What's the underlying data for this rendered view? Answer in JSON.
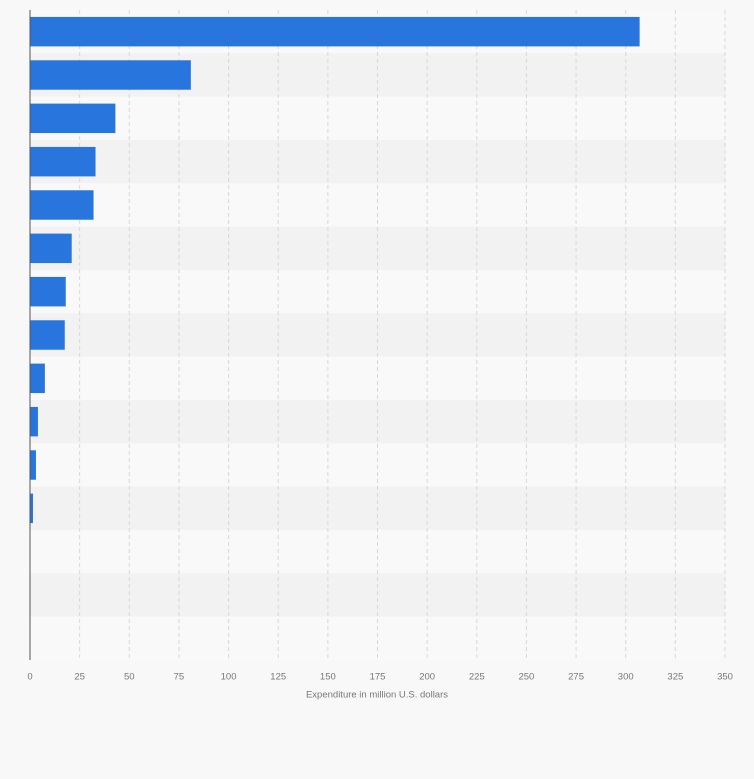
{
  "chart_data": {
    "type": "hbar",
    "categories": [
      null,
      null,
      null,
      null,
      null,
      null,
      null,
      null,
      null,
      null,
      null,
      null,
      null,
      null,
      null
    ],
    "values": [
      307,
      81,
      43,
      33,
      32,
      21,
      18,
      17.5,
      7.5,
      4,
      3,
      1.5,
      0,
      0,
      0
    ],
    "color": "#2876dd",
    "xlabel": "Expenditure in million U.S. dollars",
    "xlim": [
      0,
      350
    ],
    "xticks": [
      0,
      25,
      50,
      75,
      100,
      125,
      150,
      175,
      200,
      225,
      250,
      275,
      300,
      325,
      350
    ],
    "grid": true
  }
}
